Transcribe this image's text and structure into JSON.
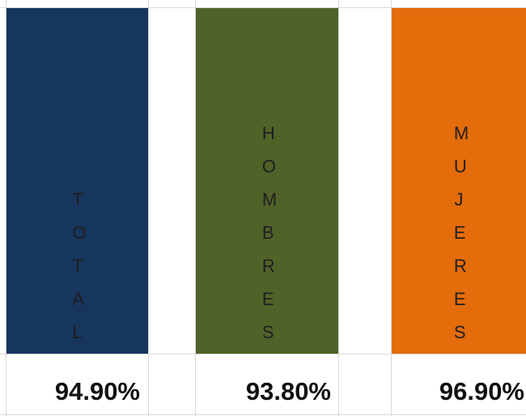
{
  "table": {
    "headers": [
      "TOTAL",
      "HOMBRES",
      "MUJERES"
    ],
    "values": [
      "94.90%",
      "93.80%",
      "96.90%"
    ]
  }
}
